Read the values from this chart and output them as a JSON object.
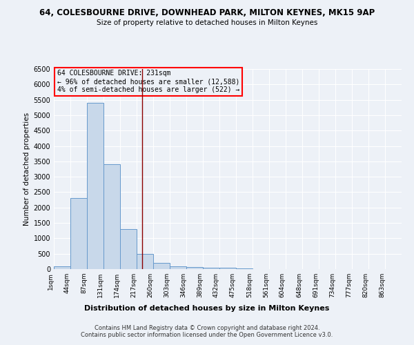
{
  "title1": "64, COLESBOURNE DRIVE, DOWNHEAD PARK, MILTON KEYNES, MK15 9AP",
  "title2": "Size of property relative to detached houses in Milton Keynes",
  "xlabel": "Distribution of detached houses by size in Milton Keynes",
  "ylabel": "Number of detached properties",
  "bin_edges": [
    1,
    44,
    87,
    131,
    174,
    217,
    260,
    303,
    346,
    389,
    432,
    475,
    518,
    561,
    604,
    648,
    691,
    734,
    777,
    820,
    863,
    906
  ],
  "bar_heights": [
    80,
    2300,
    5400,
    3400,
    1300,
    490,
    200,
    80,
    60,
    40,
    50,
    30,
    0,
    0,
    0,
    0,
    0,
    0,
    0,
    0,
    0
  ],
  "bar_color": "#c8d8ea",
  "bar_edge_color": "#6699cc",
  "red_line_x": 231,
  "ylim": [
    0,
    6500
  ],
  "annotation_title": "64 COLESBOURNE DRIVE: 231sqm",
  "annotation_line1": "← 96% of detached houses are smaller (12,588)",
  "annotation_line2": "4% of semi-detached houses are larger (522) →",
  "background_color": "#edf1f7",
  "grid_color": "#ffffff",
  "footnote1": "Contains HM Land Registry data © Crown copyright and database right 2024.",
  "footnote2": "Contains public sector information licensed under the Open Government Licence v3.0."
}
